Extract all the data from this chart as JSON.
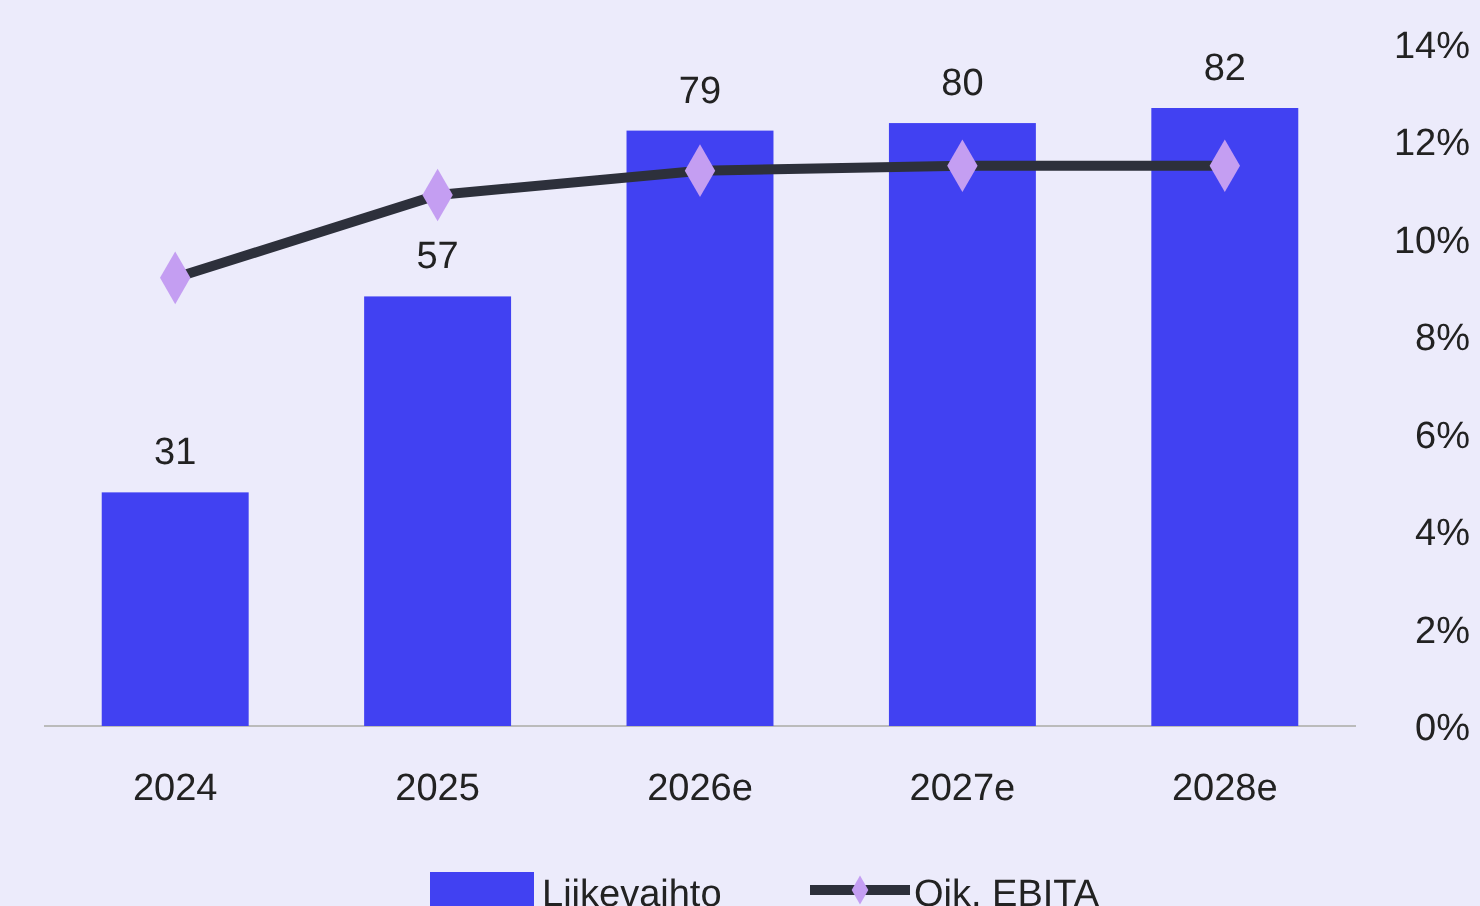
{
  "chart_data": {
    "type": "bar",
    "categories": [
      "2024",
      "2025",
      "2026e",
      "2027e",
      "2028e"
    ],
    "series": [
      {
        "name": "Liikevaihto",
        "color": "#4141f2",
        "values": [
          31,
          57,
          79,
          80,
          82
        ],
        "value_labels": [
          "31",
          "57",
          "79",
          "80",
          "82"
        ]
      },
      {
        "name": "Oik. EBITA",
        "type": "line",
        "axis": "y2",
        "color": "#2d303b",
        "colors": [
          "#c49ef2",
          "#c49ef2",
          "#c49ef2",
          "#c49ef2",
          "#c49ef2"
        ],
        "values": [
          9.2,
          10.9,
          11.4,
          11.5,
          11.5
        ]
      }
    ],
    "y2lim": [
      0,
      14
    ],
    "y2ticks": [
      {
        "value": 0,
        "label": "0%"
      },
      {
        "value": 2,
        "label": "2%"
      },
      {
        "value": 4,
        "label": "4%"
      },
      {
        "value": 6,
        "label": "6%"
      },
      {
        "value": 8,
        "label": "8%"
      },
      {
        "value": 10,
        "label": "10%"
      },
      {
        "value": 12,
        "label": "12%"
      },
      {
        "value": 14,
        "label": "14%"
      }
    ],
    "marker": "diamond",
    "legend": "bottom"
  }
}
